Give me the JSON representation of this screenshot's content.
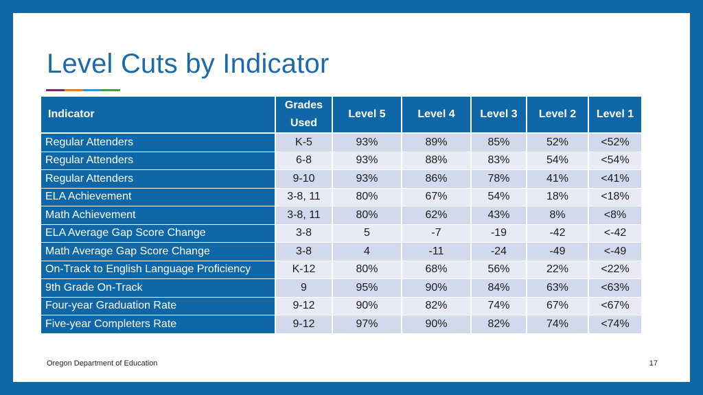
{
  "title": "Level Cuts by Indicator",
  "accent_colors": [
    "#7a2a6e",
    "#d9812a",
    "#3a8fc9",
    "#4a9a3e"
  ],
  "table": {
    "headers": {
      "indicator": "Indicator",
      "grades_line1": "Grades",
      "grades_line2": "Used",
      "level5": "Level 5",
      "level4": "Level 4",
      "level3": "Level 3",
      "level2": "Level 2",
      "level1": "Level 1"
    },
    "rows": [
      {
        "indicator": "Regular Attenders",
        "grades": "K-5",
        "l5": "93%",
        "l4": "89%",
        "l3": "85%",
        "l2": "52%",
        "l1": "<52%"
      },
      {
        "indicator": "Regular Attenders",
        "grades": "6-8",
        "l5": "93%",
        "l4": "88%",
        "l3": "83%",
        "l2": "54%",
        "l1": "<54%"
      },
      {
        "indicator": "Regular Attenders",
        "grades": "9-10",
        "l5": "93%",
        "l4": "86%",
        "l3": "78%",
        "l2": "41%",
        "l1": "<41%"
      },
      {
        "indicator": "ELA Achievement",
        "grades": "3-8, 11",
        "l5": "80%",
        "l4": "67%",
        "l3": "54%",
        "l2": "18%",
        "l1": "<18%"
      },
      {
        "indicator": "Math Achievement",
        "grades": "3-8, 11",
        "l5": "80%",
        "l4": "62%",
        "l3": "43%",
        "l2": "8%",
        "l1": "<8%"
      },
      {
        "indicator": "ELA Average Gap Score Change",
        "grades": "3-8",
        "l5": "5",
        "l4": "-7",
        "l3": "-19",
        "l2": "-42",
        "l1": "<-42"
      },
      {
        "indicator": "Math Average Gap Score Change",
        "grades": "3-8",
        "l5": "4",
        "l4": "-11",
        "l3": "-24",
        "l2": "-49",
        "l1": "<-49"
      },
      {
        "indicator": "On-Track to English Language Proficiency",
        "grades": "K-12",
        "l5": "80%",
        "l4": "68%",
        "l3": "56%",
        "l2": "22%",
        "l1": "<22%"
      },
      {
        "indicator": "9th Grade On-Track",
        "grades": "9",
        "l5": "95%",
        "l4": "90%",
        "l3": "84%",
        "l2": "63%",
        "l1": "<63%"
      },
      {
        "indicator": "Four-year Graduation Rate",
        "grades": "9-12",
        "l5": "90%",
        "l4": "82%",
        "l3": "74%",
        "l2": "67%",
        "l1": "<67%"
      },
      {
        "indicator": "Five-year Completers Rate",
        "grades": "9-12",
        "l5": "97%",
        "l4": "90%",
        "l3": "82%",
        "l2": "74%",
        "l1": "<74%"
      }
    ]
  },
  "footer": "Oregon Department of Education",
  "page_number": "17"
}
